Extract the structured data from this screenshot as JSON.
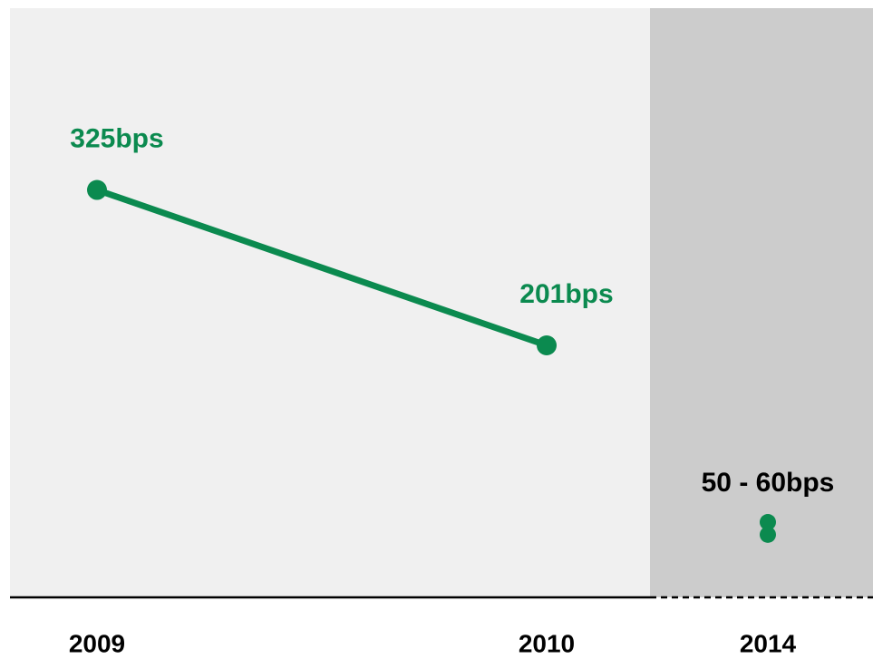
{
  "chart_data": {
    "type": "line",
    "categories": [
      "2009",
      "2010",
      "2014"
    ],
    "series": [
      {
        "name": null,
        "color": "#0b8a4f",
        "values": [
          325,
          201,
          null
        ],
        "value_labels": [
          "325bps",
          "201bps",
          null
        ]
      }
    ],
    "range": {
      "low": 50,
      "high": 60,
      "label": "50 - 60bps",
      "color": "#0b8a4f"
    },
    "ylim": [
      0,
      470
    ]
  }
}
